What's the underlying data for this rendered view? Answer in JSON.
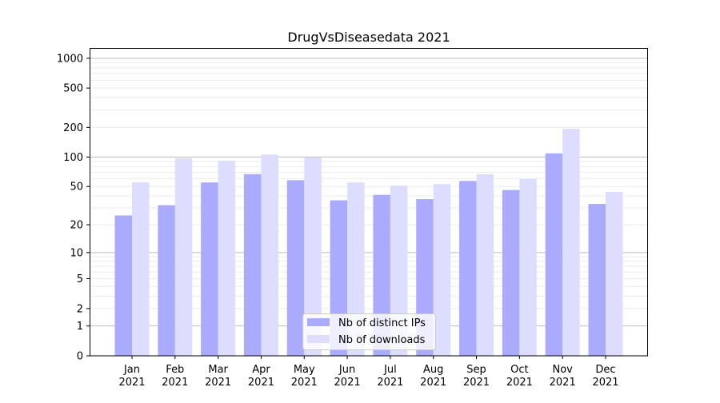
{
  "chart_data": {
    "type": "bar",
    "title": "DrugVsDiseasedata 2021",
    "xlabel": "",
    "ylabel": "",
    "yscale": "log(1+y)",
    "ylim": [
      0,
      1270
    ],
    "yticks": [
      0,
      1,
      2,
      5,
      10,
      20,
      50,
      100,
      200,
      500,
      1000
    ],
    "ytick_labels": [
      "0",
      "1",
      "2",
      "5",
      "10",
      "20",
      "50",
      "100",
      "200",
      "500",
      "1000"
    ],
    "grid": true,
    "legend_position": "bottom-center",
    "categories": [
      [
        "Jan",
        "2021"
      ],
      [
        "Feb",
        "2021"
      ],
      [
        "Mar",
        "2021"
      ],
      [
        "Apr",
        "2021"
      ],
      [
        "May",
        "2021"
      ],
      [
        "Jun",
        "2021"
      ],
      [
        "Jul",
        "2021"
      ],
      [
        "Aug",
        "2021"
      ],
      [
        "Sep",
        "2021"
      ],
      [
        "Oct",
        "2021"
      ],
      [
        "Nov",
        "2021"
      ],
      [
        "Dec",
        "2021"
      ]
    ],
    "series": [
      {
        "name": "Nb of distinct IPs",
        "color": "#aaaaff",
        "values": [
          25,
          32,
          55,
          67,
          58,
          36,
          41,
          37,
          57,
          46,
          109,
          33
        ]
      },
      {
        "name": "Nb of downloads",
        "color": "#ddddff",
        "values": [
          55,
          97,
          92,
          106,
          99,
          55,
          51,
          53,
          67,
          60,
          194,
          44
        ]
      }
    ]
  }
}
